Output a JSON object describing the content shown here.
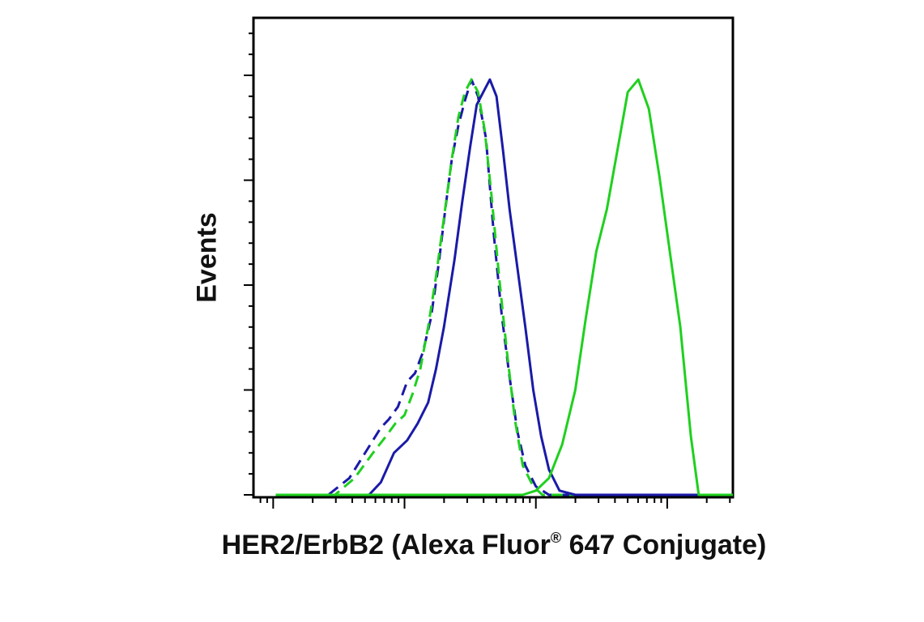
{
  "chart_data": {
    "type": "line",
    "title": "",
    "xlabel": {
      "before": "HER2/ErbB2 (Alexa Fluor",
      "mark": "®",
      "after": " 647 Conjugate)"
    },
    "ylabel": "Events",
    "x_scale": "log",
    "xlim": [
      -0.15,
      3.5
    ],
    "ylim": [
      0,
      100
    ],
    "grid": false,
    "legend": "none",
    "colors": {
      "blue": "#1a1aa8",
      "green": "#1fd01f",
      "axis": "#000000"
    },
    "series": [
      {
        "color": "#1a1aa8",
        "style": "dashed",
        "x": [
          0.02,
          0.2,
          0.42,
          0.58,
          0.72,
          0.82,
          0.88,
          0.95,
          1.02,
          1.08,
          1.14,
          1.2,
          1.26,
          1.31,
          1.36,
          1.41,
          1.46,
          1.51,
          1.56,
          1.62,
          1.68,
          1.74,
          1.8,
          1.86,
          1.92,
          2.0,
          2.1,
          2.3,
          3.5
        ],
        "y": [
          0,
          0,
          0,
          4,
          11,
          16,
          18,
          21,
          27,
          29,
          34,
          42,
          55,
          68,
          80,
          88,
          94,
          99,
          95,
          85,
          62,
          43,
          28,
          15,
          7,
          2,
          0,
          0,
          0
        ]
      },
      {
        "color": "#1fd01f",
        "style": "dashed",
        "x": [
          0.02,
          0.3,
          0.47,
          0.62,
          0.76,
          0.86,
          0.93,
          1.0,
          1.06,
          1.12,
          1.18,
          1.24,
          1.3,
          1.36,
          1.41,
          1.46,
          1.51,
          1.56,
          1.61,
          1.66,
          1.72,
          1.78,
          1.84,
          1.9,
          1.98,
          2.05,
          2.2,
          3.5
        ],
        "y": [
          0,
          0,
          0,
          4,
          10,
          14,
          17,
          19,
          24,
          30,
          40,
          52,
          66,
          80,
          90,
          96,
          99,
          96,
          87,
          72,
          52,
          34,
          18,
          7,
          2,
          0,
          0,
          0
        ]
      },
      {
        "color": "#1a1aa8",
        "style": "solid",
        "x": [
          0.02,
          0.5,
          0.73,
          0.82,
          0.92,
          1.02,
          1.1,
          1.18,
          1.24,
          1.3,
          1.38,
          1.44,
          1.5,
          1.55,
          1.6,
          1.65,
          1.7,
          1.75,
          1.8,
          1.86,
          1.92,
          1.98,
          2.04,
          2.1,
          2.18,
          2.3,
          2.5,
          3.5
        ],
        "y": [
          0,
          0,
          0,
          3,
          10,
          13,
          17,
          22,
          30,
          40,
          56,
          70,
          83,
          93,
          96,
          99,
          95,
          82,
          68,
          54,
          40,
          25,
          14,
          6,
          1,
          0,
          0,
          0
        ]
      },
      {
        "color": "#1fd01f",
        "style": "solid",
        "x": [
          0.02,
          1.7,
          1.9,
          2.0,
          2.1,
          2.2,
          2.3,
          2.38,
          2.46,
          2.54,
          2.62,
          2.7,
          2.78,
          2.86,
          2.94,
          3.02,
          3.1,
          3.18,
          3.24,
          3.5
        ],
        "y": [
          0,
          0,
          0,
          1,
          4,
          12,
          25,
          42,
          58,
          68,
          82,
          96,
          99,
          92,
          76,
          58,
          40,
          14,
          0,
          0
        ]
      }
    ]
  }
}
